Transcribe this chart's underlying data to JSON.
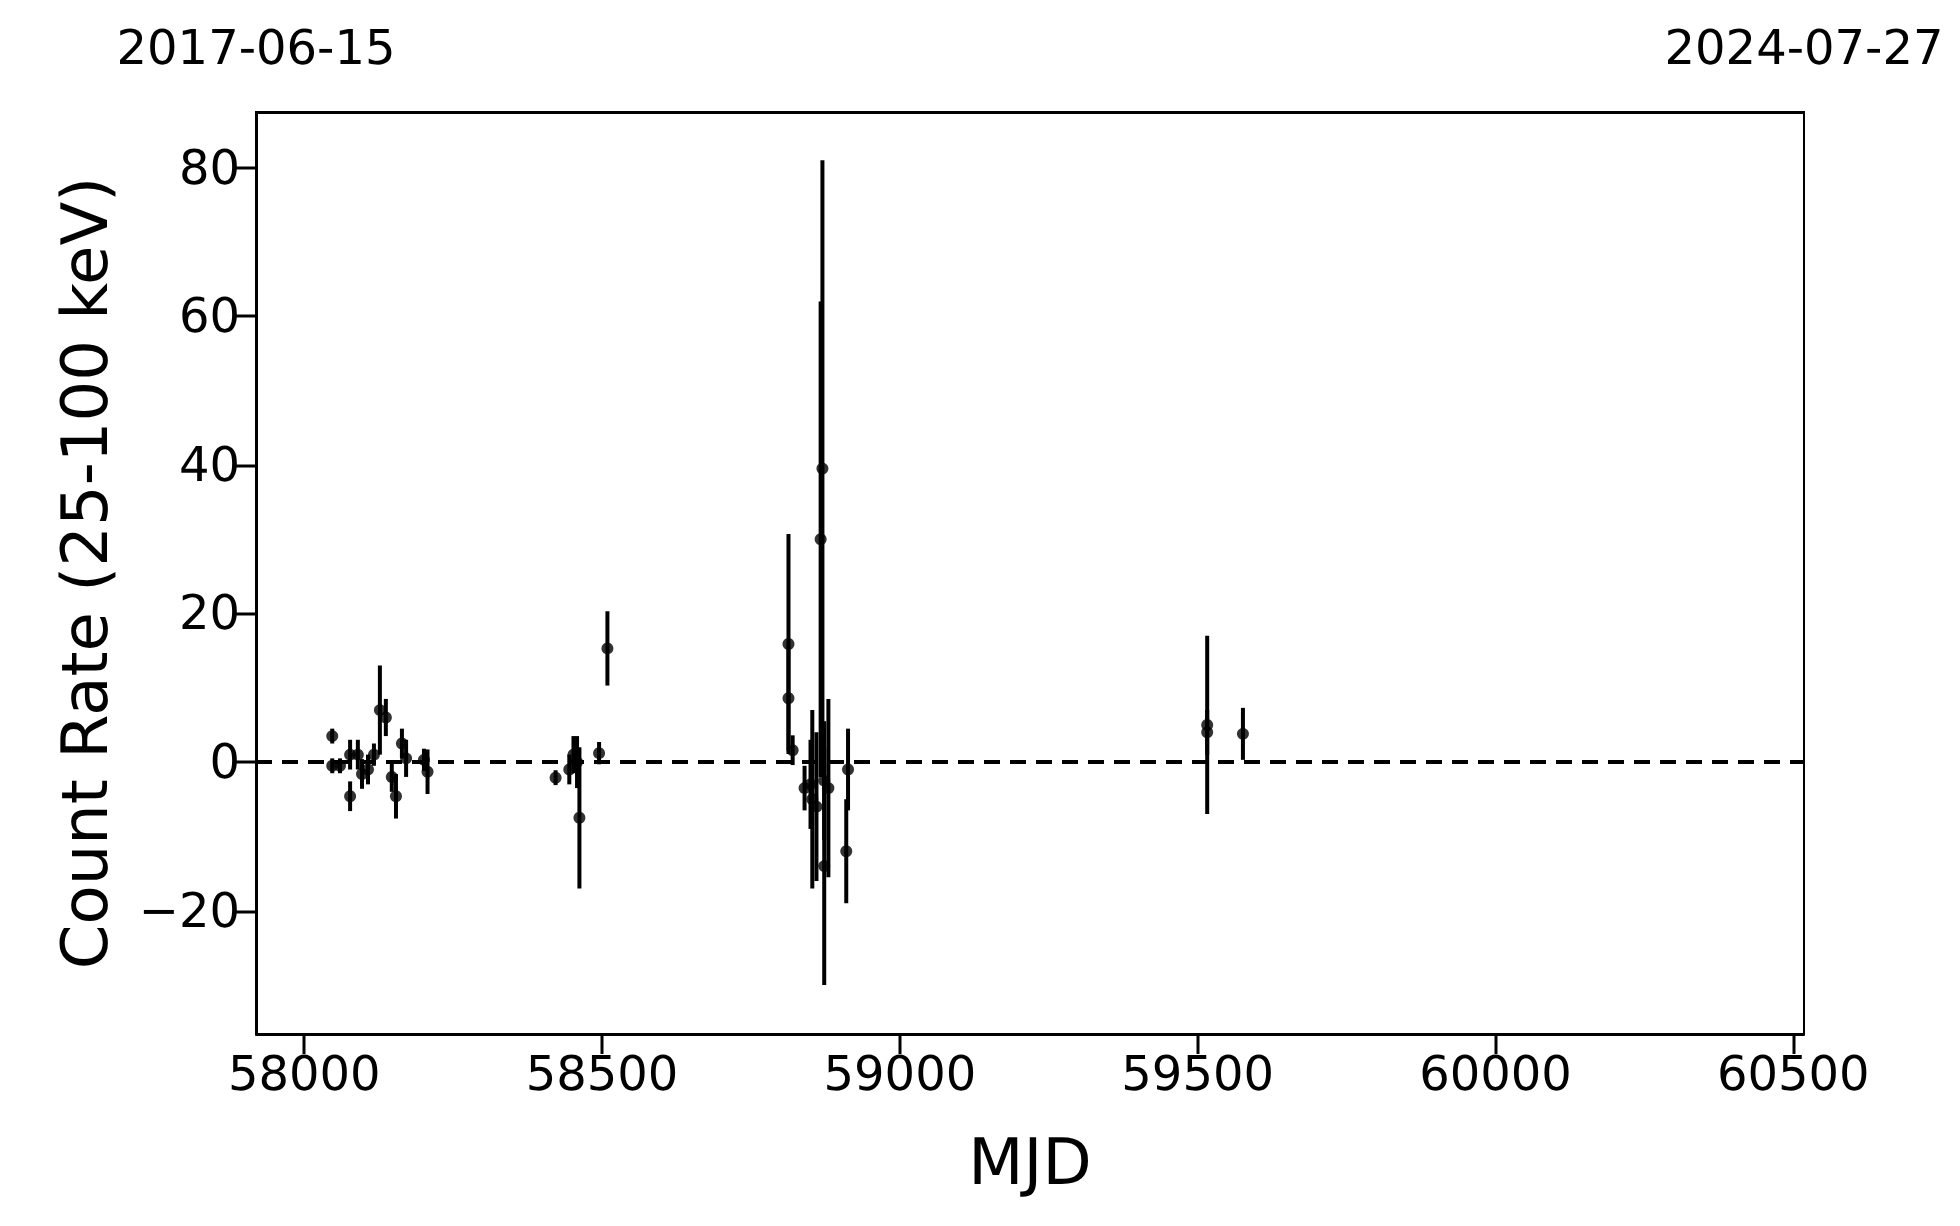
{
  "chart_data": {
    "type": "scatter",
    "xlabel": "MJD",
    "ylabel": "Count Rate (25-100 keV)",
    "x": [
      58047,
      58047,
      58060,
      58077,
      58077,
      58090,
      58097,
      58107,
      58117,
      58127,
      58137,
      58147,
      58154,
      58164,
      58171,
      58201,
      58207,
      58422,
      58445,
      58452,
      58458,
      58462,
      58495,
      58509,
      58813,
      58813,
      58820,
      58840,
      58850,
      58853,
      58860,
      58867,
      58870,
      58873,
      58873,
      58880,
      58910,
      58913,
      59516,
      59516,
      59576
    ],
    "series": [
      {
        "color": "#000000",
        "values": [
          3.5,
          -0.5,
          -0.5,
          1,
          -4.6,
          1,
          -1.6,
          -1,
          1,
          7,
          6,
          -2,
          -4.6,
          2.5,
          0.5,
          0.3,
          -1.3,
          -2.1,
          -1,
          1,
          0,
          -7.5,
          1.2,
          15.3,
          15.9,
          8.6,
          1.6,
          -3.5,
          -3,
          -5,
          -6,
          30,
          39.5,
          -14,
          -2.5,
          -3.5,
          -12,
          -1,
          5,
          4,
          3.8
        ],
        "errors": [
          1,
          1,
          1,
          2,
          2,
          2,
          2,
          2,
          1.5,
          6,
          2.5,
          2,
          3,
          2,
          2.5,
          1.5,
          3,
          1,
          2,
          2.5,
          3.5,
          9.5,
          1.5,
          5,
          14.8,
          7,
          2,
          3,
          6,
          12,
          10,
          32,
          41.5,
          16,
          8,
          12,
          7,
          5.5,
          12,
          3,
          3.5
        ]
      }
    ],
    "xlim": [
      57919,
      60518
    ],
    "xticks": [
      58000,
      58500,
      59000,
      59500,
      60000,
      60500
    ],
    "ylim": [
      -36.6,
      87.5
    ],
    "yticks": [
      -20,
      0,
      20,
      40,
      60,
      80
    ],
    "x2lim": [
      "2017-06-15",
      "2024-07-27"
    ],
    "x2ticks": [
      "2017-06-15",
      "2024-07-27"
    ],
    "ref_lines": [
      {
        "axis": "y",
        "value": 0,
        "color": "#000000",
        "line_style": "dashed"
      }
    ],
    "marker": "circle",
    "grid": false
  }
}
